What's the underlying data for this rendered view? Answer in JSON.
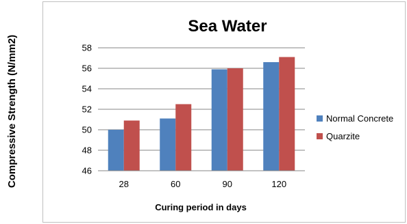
{
  "chart_data": {
    "type": "bar",
    "title": "Sea Water",
    "xlabel": "Curing period in days",
    "ylabel": "Compressive Strength (N/mm2)",
    "categories": [
      "28",
      "60",
      "90",
      "120"
    ],
    "ylim": [
      46,
      58
    ],
    "yticks": [
      "46",
      "48",
      "50",
      "52",
      "54",
      "56",
      "58"
    ],
    "grid": true,
    "legend_position": "right",
    "series": [
      {
        "name": "Normal Concrete",
        "color": "#4F81BD",
        "values": [
          50.0,
          51.1,
          55.9,
          56.6
        ]
      },
      {
        "name": "Quarzite",
        "color": "#C0504D",
        "values": [
          50.9,
          52.5,
          56.0,
          57.1
        ]
      }
    ]
  }
}
